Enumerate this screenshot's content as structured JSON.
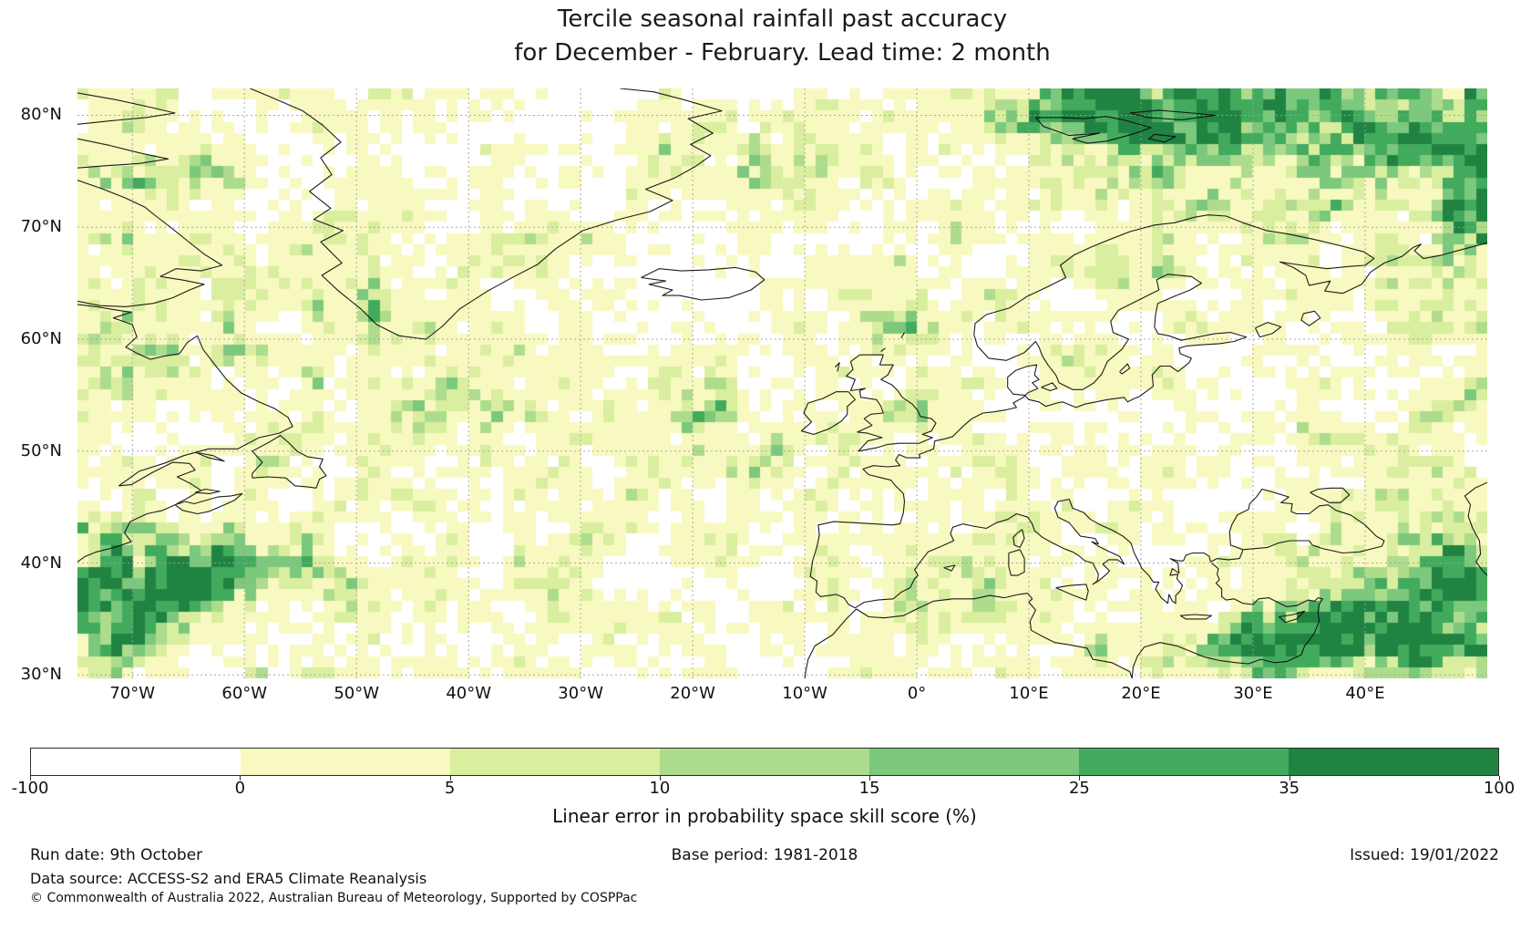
{
  "figure": {
    "title_line1": "Tercile seasonal rainfall past accuracy",
    "title_line2": "for December - February. Lead time: 2 month"
  },
  "footer": {
    "run_date": "Run date: 9th October",
    "base_period": "Base period: 1981-2018",
    "issued": "Issued: 19/01/2022",
    "data_source": "Data source: ACCESS-S2 and ERA5 Climate Reanalysis",
    "copyright": "© Commonwealth of Australia 2022, Australian Bureau of Meteorology, Supported by COSPPac"
  },
  "chart_data": {
    "type": "heatmap",
    "title": "Tercile seasonal rainfall past accuracy for December - February. Lead time: 2 month",
    "projection": "equirectangular",
    "extent": {
      "lon_min": -74.9,
      "lon_max": 50.9,
      "lat_min": 29.7,
      "lat_max": 82.4
    },
    "grid_on": true,
    "gridline_color": "#a0a0a0",
    "coastline_color": "#0a0a0a",
    "x_ticks": [
      {
        "label": "70°W",
        "lon": -70
      },
      {
        "label": "60°W",
        "lon": -60
      },
      {
        "label": "50°W",
        "lon": -50
      },
      {
        "label": "40°W",
        "lon": -40
      },
      {
        "label": "30°W",
        "lon": -30
      },
      {
        "label": "20°W",
        "lon": -20
      },
      {
        "label": "10°W",
        "lon": -10
      },
      {
        "label": "0°",
        "lon": 0
      },
      {
        "label": "10°E",
        "lon": 10
      },
      {
        "label": "20°E",
        "lon": 20
      },
      {
        "label": "30°E",
        "lon": 30
      },
      {
        "label": "40°E",
        "lon": 40
      }
    ],
    "y_ticks": [
      {
        "label": "80°N",
        "lat": 80
      },
      {
        "label": "70°N",
        "lat": 70
      },
      {
        "label": "60°N",
        "lat": 60
      },
      {
        "label": "50°N",
        "lat": 50
      },
      {
        "label": "40°N",
        "lat": 40
      },
      {
        "label": "30°N",
        "lat": 30
      }
    ],
    "colorbar": {
      "label": "Linear error in probability space skill score (%)",
      "orientation": "horizontal",
      "boundaries": [
        -100,
        0,
        5,
        10,
        15,
        25,
        35,
        100
      ],
      "tick_labels": [
        "-100",
        "0",
        "5",
        "10",
        "15",
        "25",
        "35",
        "100"
      ],
      "colors": [
        "#ffffff",
        "#f8f9c0",
        "#d9ee9f",
        "#aedc8d",
        "#7cc87d",
        "#42aa5d",
        "#218342"
      ]
    },
    "cells": {
      "cols": 126,
      "rows": 53,
      "seed": 20220119,
      "level_thresholds": [
        0.47,
        0.78,
        0.9,
        0.97,
        1.08,
        1.22
      ],
      "hotspots": [
        [
          0.913,
          0.065,
          0.14,
          0.1,
          0.55
        ],
        [
          0.75,
          0.03,
          0.09,
          0.045,
          0.4
        ],
        [
          0.76,
          0.05,
          0.05,
          0.035,
          0.35
        ],
        [
          0.99,
          0.31,
          0.035,
          0.2,
          0.3
        ],
        [
          0.95,
          0.87,
          0.06,
          0.09,
          0.65
        ],
        [
          0.88,
          0.92,
          0.05,
          0.05,
          0.35
        ],
        [
          0.8,
          0.97,
          0.08,
          0.04,
          0.28
        ],
        [
          0.087,
          0.823,
          0.075,
          0.045,
          0.55
        ],
        [
          0.02,
          0.9,
          0.05,
          0.07,
          0.5
        ],
        [
          0.03,
          0.15,
          0.04,
          0.08,
          0.28
        ],
        [
          0.05,
          0.43,
          0.05,
          0.12,
          0.25
        ],
        [
          0.198,
          0.35,
          0.03,
          0.12,
          0.3
        ],
        [
          0.29,
          0.52,
          0.05,
          0.05,
          0.22
        ],
        [
          0.44,
          0.54,
          0.04,
          0.04,
          0.18
        ],
        [
          0.6,
          0.39,
          0.05,
          0.05,
          0.18
        ],
        [
          0.48,
          0.14,
          0.05,
          0.05,
          0.22
        ],
        [
          0.61,
          0.84,
          0.04,
          0.04,
          0.2
        ],
        [
          0.52,
          0.6,
          0.05,
          0.05,
          0.15
        ]
      ]
    }
  }
}
